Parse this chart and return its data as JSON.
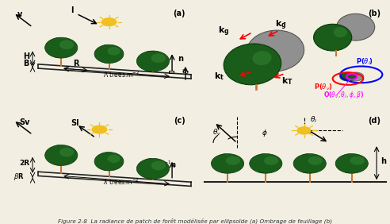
{
  "bg_color": "#f2efe2",
  "border_color": "#333333",
  "tree_dark_green": "#1a5c1a",
  "tree_mid_green": "#2d7a2d",
  "tree_shadow": "#0d3d0d",
  "trunk_color": "#c87832",
  "sun_color": "#f0c020",
  "gray_color": "#909090",
  "panel_labels": [
    "(a)",
    "(b)",
    "(c)",
    "(d)"
  ],
  "title": "Figure 2-8  La radiance de patch de forêt modélisée par ellipsoïde (a) Ombrage de feuillage (b)"
}
